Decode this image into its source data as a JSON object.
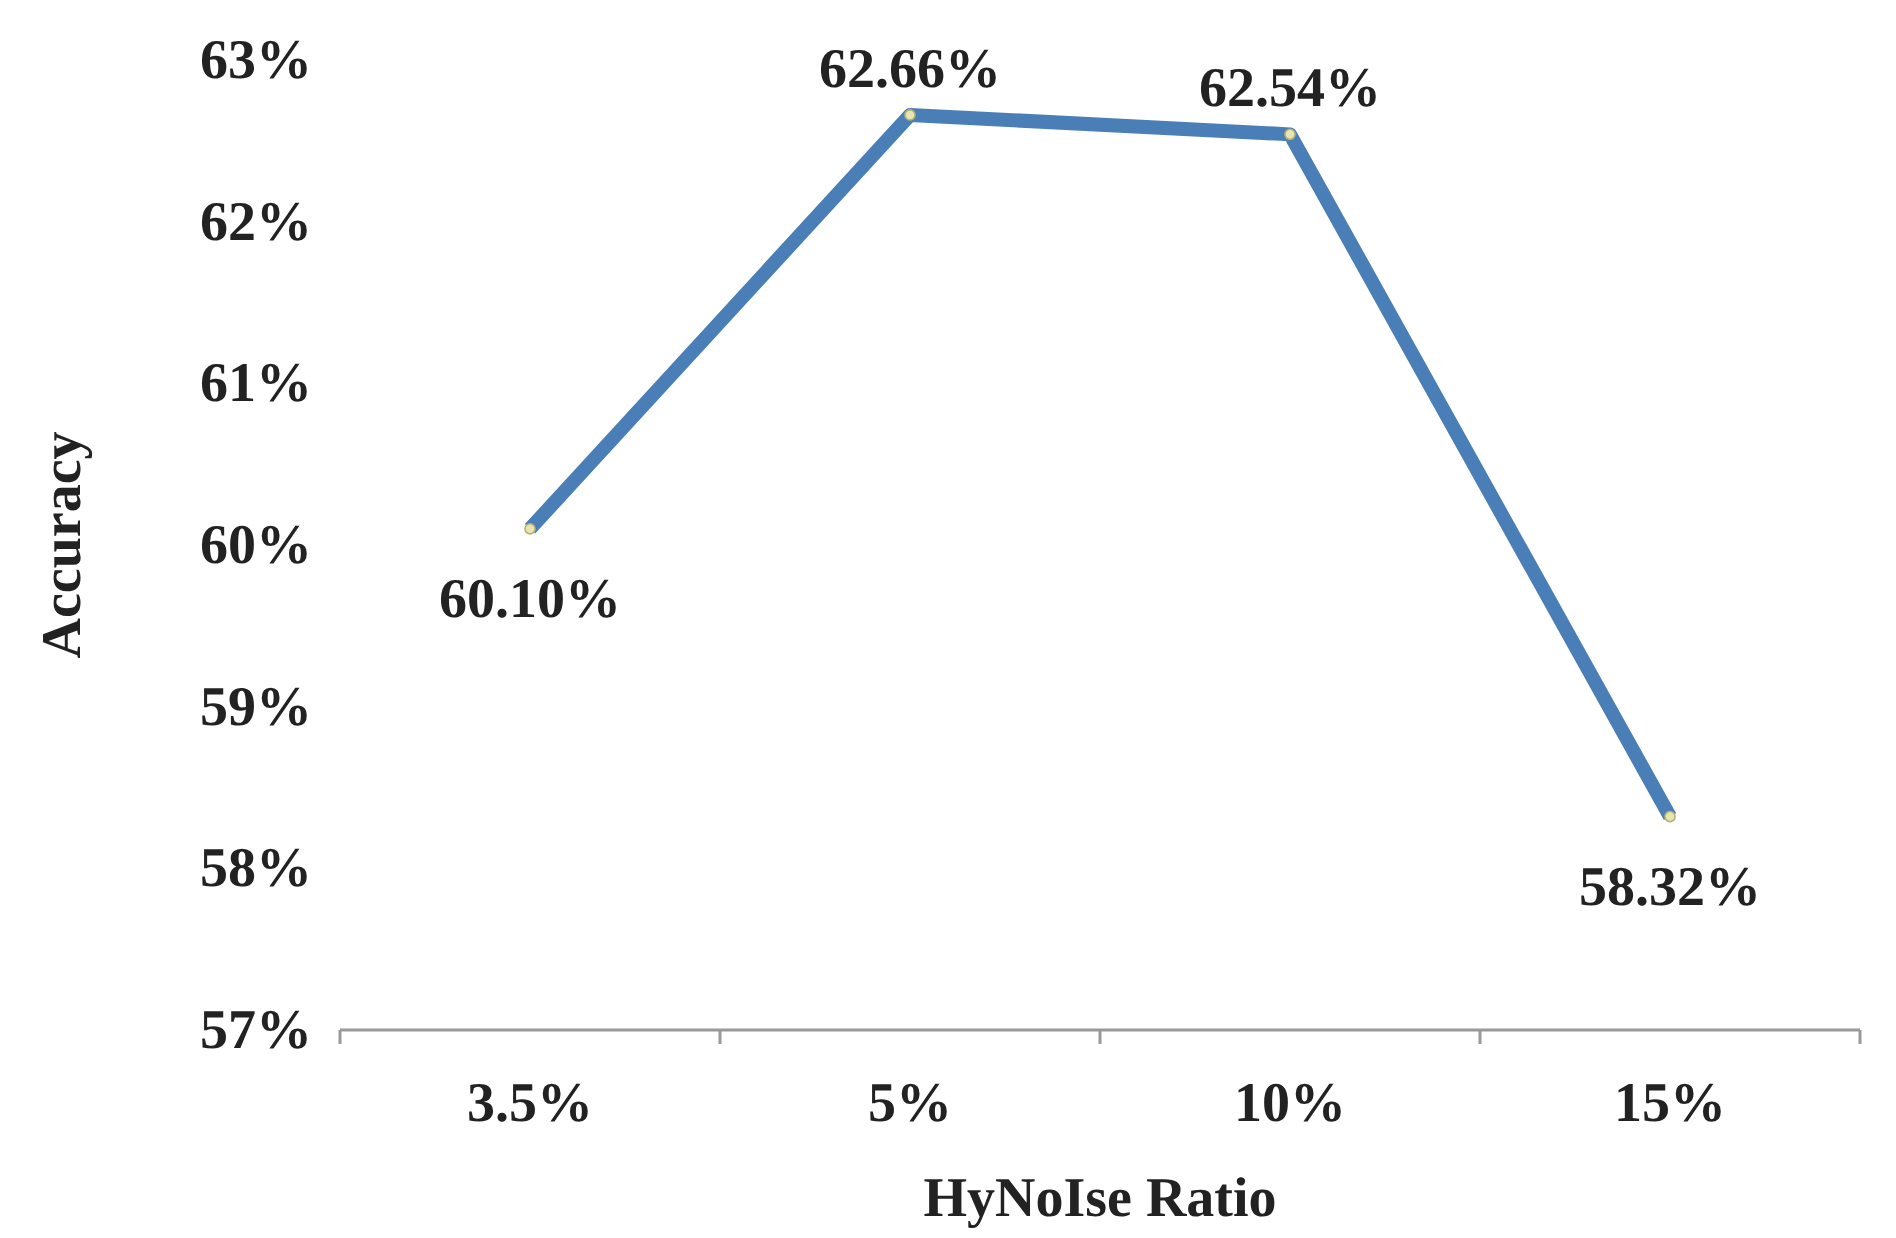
{
  "chart_data": {
    "type": "line",
    "xlabel": "HyNoIse Ratio",
    "ylabel": "Accuracy",
    "categories": [
      "3.5%",
      "5%",
      "10%",
      "15%"
    ],
    "series": [
      {
        "color": "#4a7eb6",
        "values": [
          60.1,
          62.66,
          62.54,
          58.32
        ],
        "value_labels": [
          "60.10%",
          "62.66%",
          "62.54%",
          "58.32%"
        ]
      }
    ],
    "ylim": [
      57,
      63
    ],
    "yticks": [
      {
        "value": 57,
        "label": "57%"
      },
      {
        "value": 58,
        "label": "58%"
      },
      {
        "value": 59,
        "label": "59%"
      },
      {
        "value": 60,
        "label": "60%"
      },
      {
        "value": 61,
        "label": "61%"
      },
      {
        "value": 62,
        "label": "62%"
      },
      {
        "value": 63,
        "label": "63%"
      }
    ],
    "marker": "circle",
    "grid": false
  }
}
